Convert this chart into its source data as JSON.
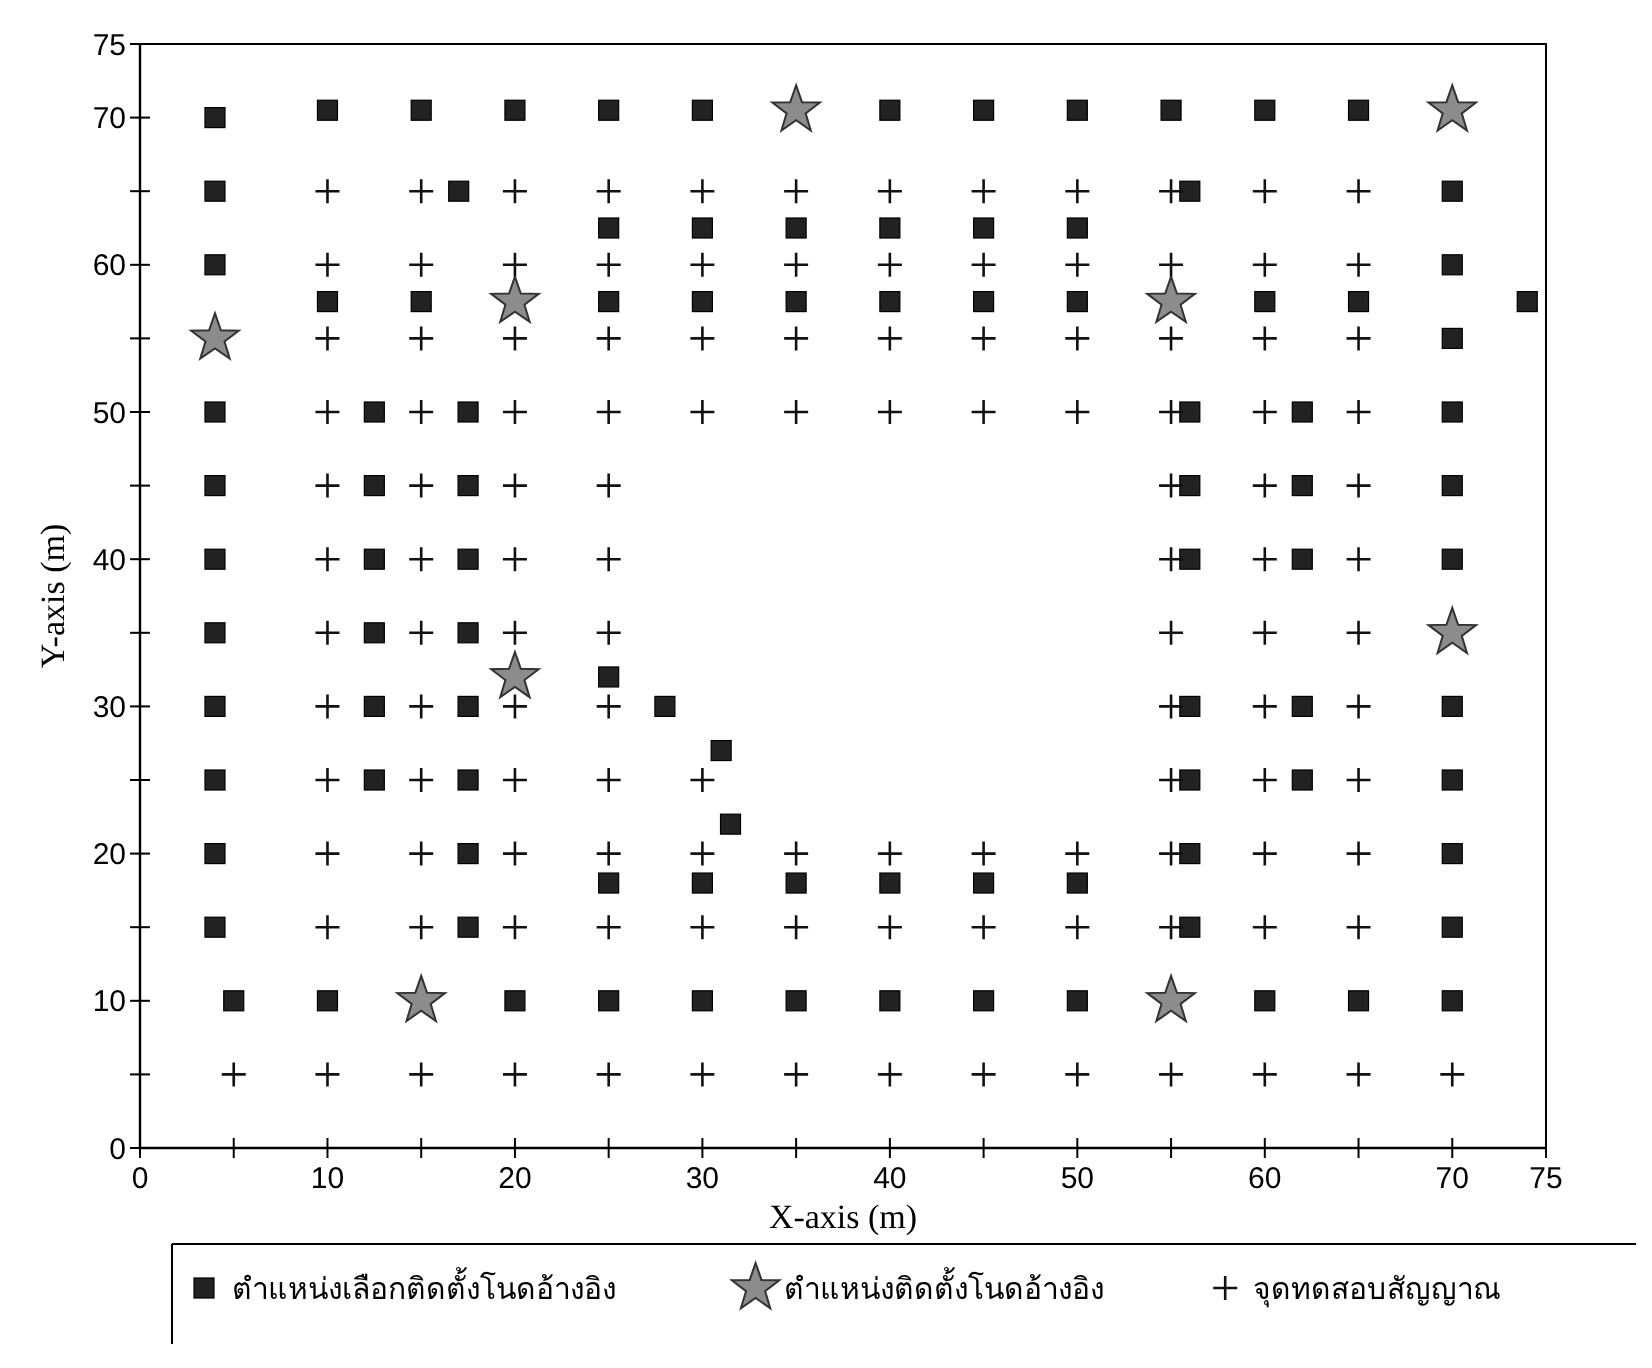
{
  "chart_data": {
    "type": "scatter",
    "xlabel": "X-axis (m)",
    "ylabel": "Y-axis (m)",
    "xlim": [
      0,
      75
    ],
    "ylim": [
      0,
      75
    ],
    "xticks": [
      0,
      {
        "value": 5,
        "label": null
      },
      10,
      {
        "value": 15,
        "label": null
      },
      20,
      {
        "value": 25,
        "label": null
      },
      30,
      {
        "value": 35,
        "label": null
      },
      40,
      {
        "value": 45,
        "label": null
      },
      50,
      {
        "value": 55,
        "label": null
      },
      60,
      {
        "value": 65,
        "label": null
      },
      70,
      75
    ],
    "yticks": [
      0,
      {
        "value": 5,
        "label": null
      },
      10,
      {
        "value": 15,
        "label": null
      },
      20,
      {
        "value": 25,
        "label": null
      },
      30,
      {
        "value": 35,
        "label": null
      },
      40,
      {
        "value": 45,
        "label": null
      },
      50,
      {
        "value": 55,
        "label": null
      },
      60,
      {
        "value": 65,
        "label": null
      },
      70,
      75
    ],
    "grid": false,
    "legend": "bottom",
    "series": [
      {
        "name": "ตำแหน่งเลือกติดตั้งโนดอ้างอิง",
        "color": "#222222",
        "marker": "square",
        "x": [
          4,
          4,
          4,
          4,
          4,
          4,
          4,
          4,
          4,
          4,
          4,
          5,
          10,
          15,
          20,
          25,
          30,
          40,
          45,
          50,
          55,
          60,
          65,
          17,
          56,
          70,
          25,
          30,
          35,
          40,
          45,
          50,
          70,
          10,
          15,
          25,
          30,
          35,
          40,
          45,
          50,
          60,
          65,
          74,
          70,
          12.5,
          17.5,
          56,
          62,
          70,
          12.5,
          17.5,
          56,
          62,
          70,
          12.5,
          17.5,
          56,
          62,
          70,
          12.5,
          17.5,
          12.5,
          17.5,
          25,
          28,
          56,
          62,
          70,
          31,
          12.5,
          17.5,
          56,
          62,
          70,
          31.5,
          17.5,
          56,
          70,
          25,
          30,
          35,
          40,
          45,
          50,
          17.5,
          56,
          70,
          10,
          20,
          25,
          30,
          35,
          40,
          45,
          50,
          60,
          65,
          70
        ],
        "values": [
          70,
          65,
          60,
          50,
          45,
          40,
          35,
          30,
          25,
          20,
          15,
          10,
          70.5,
          70.5,
          70.5,
          70.5,
          70.5,
          70.5,
          70.5,
          70.5,
          70.5,
          70.5,
          70.5,
          65,
          65,
          65,
          62.5,
          62.5,
          62.5,
          62.5,
          62.5,
          62.5,
          60,
          57.5,
          57.5,
          57.5,
          57.5,
          57.5,
          57.5,
          57.5,
          57.5,
          57.5,
          57.5,
          57.5,
          55,
          50,
          50,
          50,
          50,
          50,
          45,
          45,
          45,
          45,
          45,
          40,
          40,
          40,
          40,
          40,
          35,
          35,
          30,
          30,
          32,
          30,
          30,
          30,
          30,
          27,
          25,
          25,
          25,
          25,
          25,
          22,
          20,
          20,
          20,
          18,
          18,
          18,
          18,
          18,
          18,
          15,
          15,
          15,
          10,
          10,
          10,
          10,
          10,
          10,
          10,
          10,
          10,
          10,
          10
        ]
      },
      {
        "name": "ตำแหน่งติดตั้งโนดอ้างอิง",
        "color": "#8c8c8c",
        "marker": "star",
        "x": [
          35,
          70,
          4,
          20,
          55,
          20,
          70,
          15,
          55
        ],
        "values": [
          70.5,
          70.5,
          55,
          57.5,
          57.5,
          32,
          35,
          10,
          10
        ]
      },
      {
        "name": "จุดทดสอบสัญญาณ",
        "color": "#111111",
        "marker": "cross",
        "x": [
          10,
          15,
          20,
          25,
          30,
          35,
          40,
          45,
          50,
          55,
          60,
          65,
          10,
          15,
          20,
          25,
          30,
          35,
          40,
          45,
          50,
          55,
          60,
          65,
          10,
          15,
          20,
          25,
          30,
          35,
          40,
          45,
          50,
          55,
          60,
          65,
          10,
          15,
          20,
          25,
          30,
          35,
          40,
          45,
          50,
          55,
          60,
          65,
          10,
          15,
          20,
          25,
          55,
          60,
          65,
          10,
          15,
          20,
          25,
          55,
          60,
          65,
          10,
          15,
          20,
          25,
          55,
          60,
          65,
          10,
          15,
          20,
          25,
          55,
          60,
          65,
          10,
          15,
          20,
          25,
          30,
          55,
          60,
          65,
          10,
          15,
          20,
          25,
          30,
          35,
          40,
          45,
          50,
          55,
          60,
          65,
          10,
          15,
          20,
          25,
          30,
          35,
          40,
          45,
          50,
          55,
          60,
          65,
          5,
          10,
          15,
          20,
          25,
          30,
          35,
          40,
          45,
          50,
          55,
          60,
          65,
          70
        ],
        "values": [
          65,
          65,
          65,
          65,
          65,
          65,
          65,
          65,
          65,
          65,
          65,
          65,
          60,
          60,
          60,
          60,
          60,
          60,
          60,
          60,
          60,
          60,
          60,
          60,
          55,
          55,
          55,
          55,
          55,
          55,
          55,
          55,
          55,
          55,
          55,
          55,
          50,
          50,
          50,
          50,
          50,
          50,
          50,
          50,
          50,
          50,
          50,
          50,
          45,
          45,
          45,
          45,
          45,
          45,
          45,
          40,
          40,
          40,
          40,
          40,
          40,
          40,
          35,
          35,
          35,
          35,
          35,
          35,
          35,
          30,
          30,
          30,
          30,
          30,
          30,
          30,
          25,
          25,
          25,
          25,
          25,
          25,
          25,
          25,
          20,
          20,
          20,
          20,
          20,
          20,
          20,
          20,
          20,
          20,
          20,
          20,
          15,
          15,
          15,
          15,
          15,
          15,
          15,
          15,
          15,
          15,
          15,
          15,
          5,
          5,
          5,
          5,
          5,
          5,
          5,
          5,
          5,
          5,
          5,
          5,
          5,
          5
        ]
      }
    ]
  }
}
